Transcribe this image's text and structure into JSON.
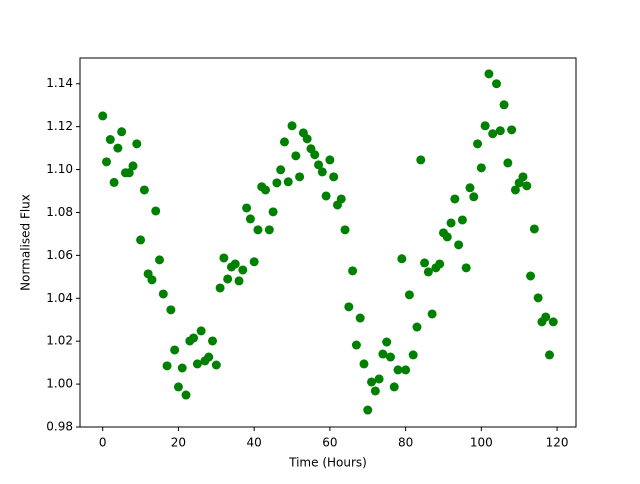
{
  "chart_data": {
    "type": "scatter",
    "x_label": "Time (Hours)",
    "y_label": "Normalised Flux",
    "color": "#008000",
    "x": [
      0,
      1,
      2,
      3,
      4,
      5,
      6,
      7,
      8,
      9,
      10,
      11,
      12,
      13,
      14,
      15,
      16,
      17,
      18,
      19,
      20,
      21,
      22,
      23,
      24,
      25,
      26,
      27,
      28,
      29,
      30,
      31,
      32,
      33,
      34,
      35,
      36,
      37,
      38,
      39,
      40,
      41,
      42,
      43,
      44,
      45,
      46,
      47,
      48,
      49,
      50,
      51,
      52,
      53,
      54,
      55,
      56,
      57,
      58,
      59,
      60,
      61,
      62,
      63,
      64,
      65,
      66,
      67,
      68,
      69,
      70,
      71,
      72,
      73,
      74,
      75,
      76,
      77,
      78,
      79,
      80,
      81,
      82,
      83,
      84,
      85,
      86,
      87,
      88,
      89,
      90,
      91,
      92,
      93,
      94,
      95,
      96,
      97,
      98,
      99,
      100,
      101,
      102,
      103,
      104,
      105,
      106,
      107,
      108,
      109,
      110,
      111,
      112,
      113,
      114,
      115,
      116,
      117,
      118,
      119
    ],
    "values": [
      1.125,
      1.1036,
      1.114,
      1.094,
      1.11,
      1.1176,
      1.0985,
      1.0985,
      1.1017,
      1.112,
      1.0672,
      1.0905,
      1.0514,
      1.0486,
      1.0807,
      1.0579,
      1.042,
      1.0085,
      1.0346,
      1.0159,
      0.9987,
      1.0075,
      0.9949,
      1.0201,
      1.0215,
      1.0094,
      1.0248,
      1.0108,
      1.0126,
      1.0201,
      1.0089,
      1.0448,
      1.0588,
      1.049,
      1.0546,
      1.056,
      1.0481,
      1.0532,
      1.0821,
      1.077,
      1.057,
      1.0719,
      1.092,
      1.0905,
      1.0719,
      1.0803,
      1.0938,
      1.0999,
      1.1129,
      1.0943,
      1.1204,
      1.1064,
      1.0966,
      1.1171,
      1.1143,
      1.1097,
      1.1069,
      1.1022,
      1.0989,
      1.0877,
      1.1045,
      1.0966,
      1.0835,
      1.0863,
      1.0719,
      1.036,
      1.0528,
      1.0182,
      1.0308,
      1.0094,
      0.9879,
      1.001,
      0.9968,
      1.0024,
      1.014,
      1.0196,
      1.0126,
      0.9987,
      1.0066,
      1.0584,
      1.0066,
      1.0416,
      1.0136,
      1.0266,
      1.1045,
      1.0565,
      1.0523,
      1.0327,
      1.0542,
      1.056,
      1.0705,
      1.0686,
      1.0751,
      1.0863,
      1.0649,
      1.0765,
      1.0542,
      1.0915,
      1.0873,
      1.112,
      1.1008,
      1.1204,
      1.1446,
      1.1167,
      1.14,
      1.1181,
      1.1302,
      1.1031,
      1.1185,
      1.0905,
      1.0938,
      1.0966,
      1.0924,
      1.0504,
      1.0723,
      1.0402,
      1.029,
      1.0313,
      1.0136,
      1.029
    ],
    "xlim": [
      -6,
      125
    ],
    "ylim": [
      0.98,
      1.152
    ],
    "xticks": [
      0,
      20,
      40,
      60,
      80,
      100,
      120
    ],
    "yticks": [
      0.98,
      {
        "value": 1.0,
        "label": "1.00"
      },
      1.02,
      1.04,
      1.06,
      1.08,
      {
        "value": 1.1,
        "label": "1.10"
      },
      1.12,
      1.14
    ]
  }
}
